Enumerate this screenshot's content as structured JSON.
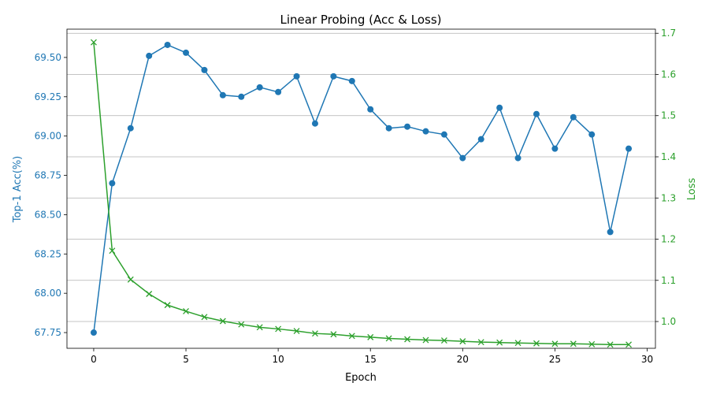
{
  "chart_data": {
    "type": "line",
    "title": "Linear Probing (Acc & Loss)",
    "xlabel": "Epoch",
    "ylabel_left": "Top-1 Acc(%)",
    "ylabel_right": "Loss",
    "xlim": [
      -1.45,
      30.45
    ],
    "ylim_left": [
      67.65,
      69.68
    ],
    "ylim_right": [
      0.935,
      1.71
    ],
    "x_ticks": [
      0,
      5,
      10,
      15,
      20,
      25,
      30
    ],
    "y_left_ticks": [
      "67.75",
      "68.00",
      "68.25",
      "68.50",
      "68.75",
      "69.00",
      "69.25",
      "69.50"
    ],
    "y_right_ticks": [
      "1.0",
      "1.1",
      "1.2",
      "1.3",
      "1.4",
      "1.5",
      "1.6",
      "1.7"
    ],
    "grid": "horizontal lines at right-axis ticks",
    "x": [
      0,
      1,
      2,
      3,
      4,
      5,
      6,
      7,
      8,
      9,
      10,
      11,
      12,
      13,
      14,
      15,
      16,
      17,
      18,
      19,
      20,
      21,
      22,
      23,
      24,
      25,
      26,
      27,
      28,
      29
    ],
    "series": [
      {
        "axis": "left",
        "color": "#1f77b4",
        "marker": "circle",
        "values": [
          67.75,
          68.7,
          69.05,
          69.51,
          69.58,
          69.53,
          69.42,
          69.26,
          69.25,
          69.31,
          69.28,
          69.38,
          69.08,
          69.38,
          69.35,
          69.17,
          69.05,
          69.06,
          69.03,
          69.01,
          68.86,
          68.98,
          69.18,
          68.86,
          69.14,
          68.92,
          69.12,
          69.01,
          68.39,
          68.92
        ]
      },
      {
        "axis": "right",
        "color": "#2ca02c",
        "marker": "x",
        "values": [
          1.678,
          1.172,
          1.102,
          1.067,
          1.04,
          1.025,
          1.011,
          1.001,
          0.993,
          0.986,
          0.982,
          0.977,
          0.971,
          0.969,
          0.965,
          0.962,
          0.959,
          0.957,
          0.955,
          0.954,
          0.952,
          0.95,
          0.949,
          0.948,
          0.947,
          0.946,
          0.946,
          0.945,
          0.944,
          0.944
        ]
      }
    ]
  }
}
